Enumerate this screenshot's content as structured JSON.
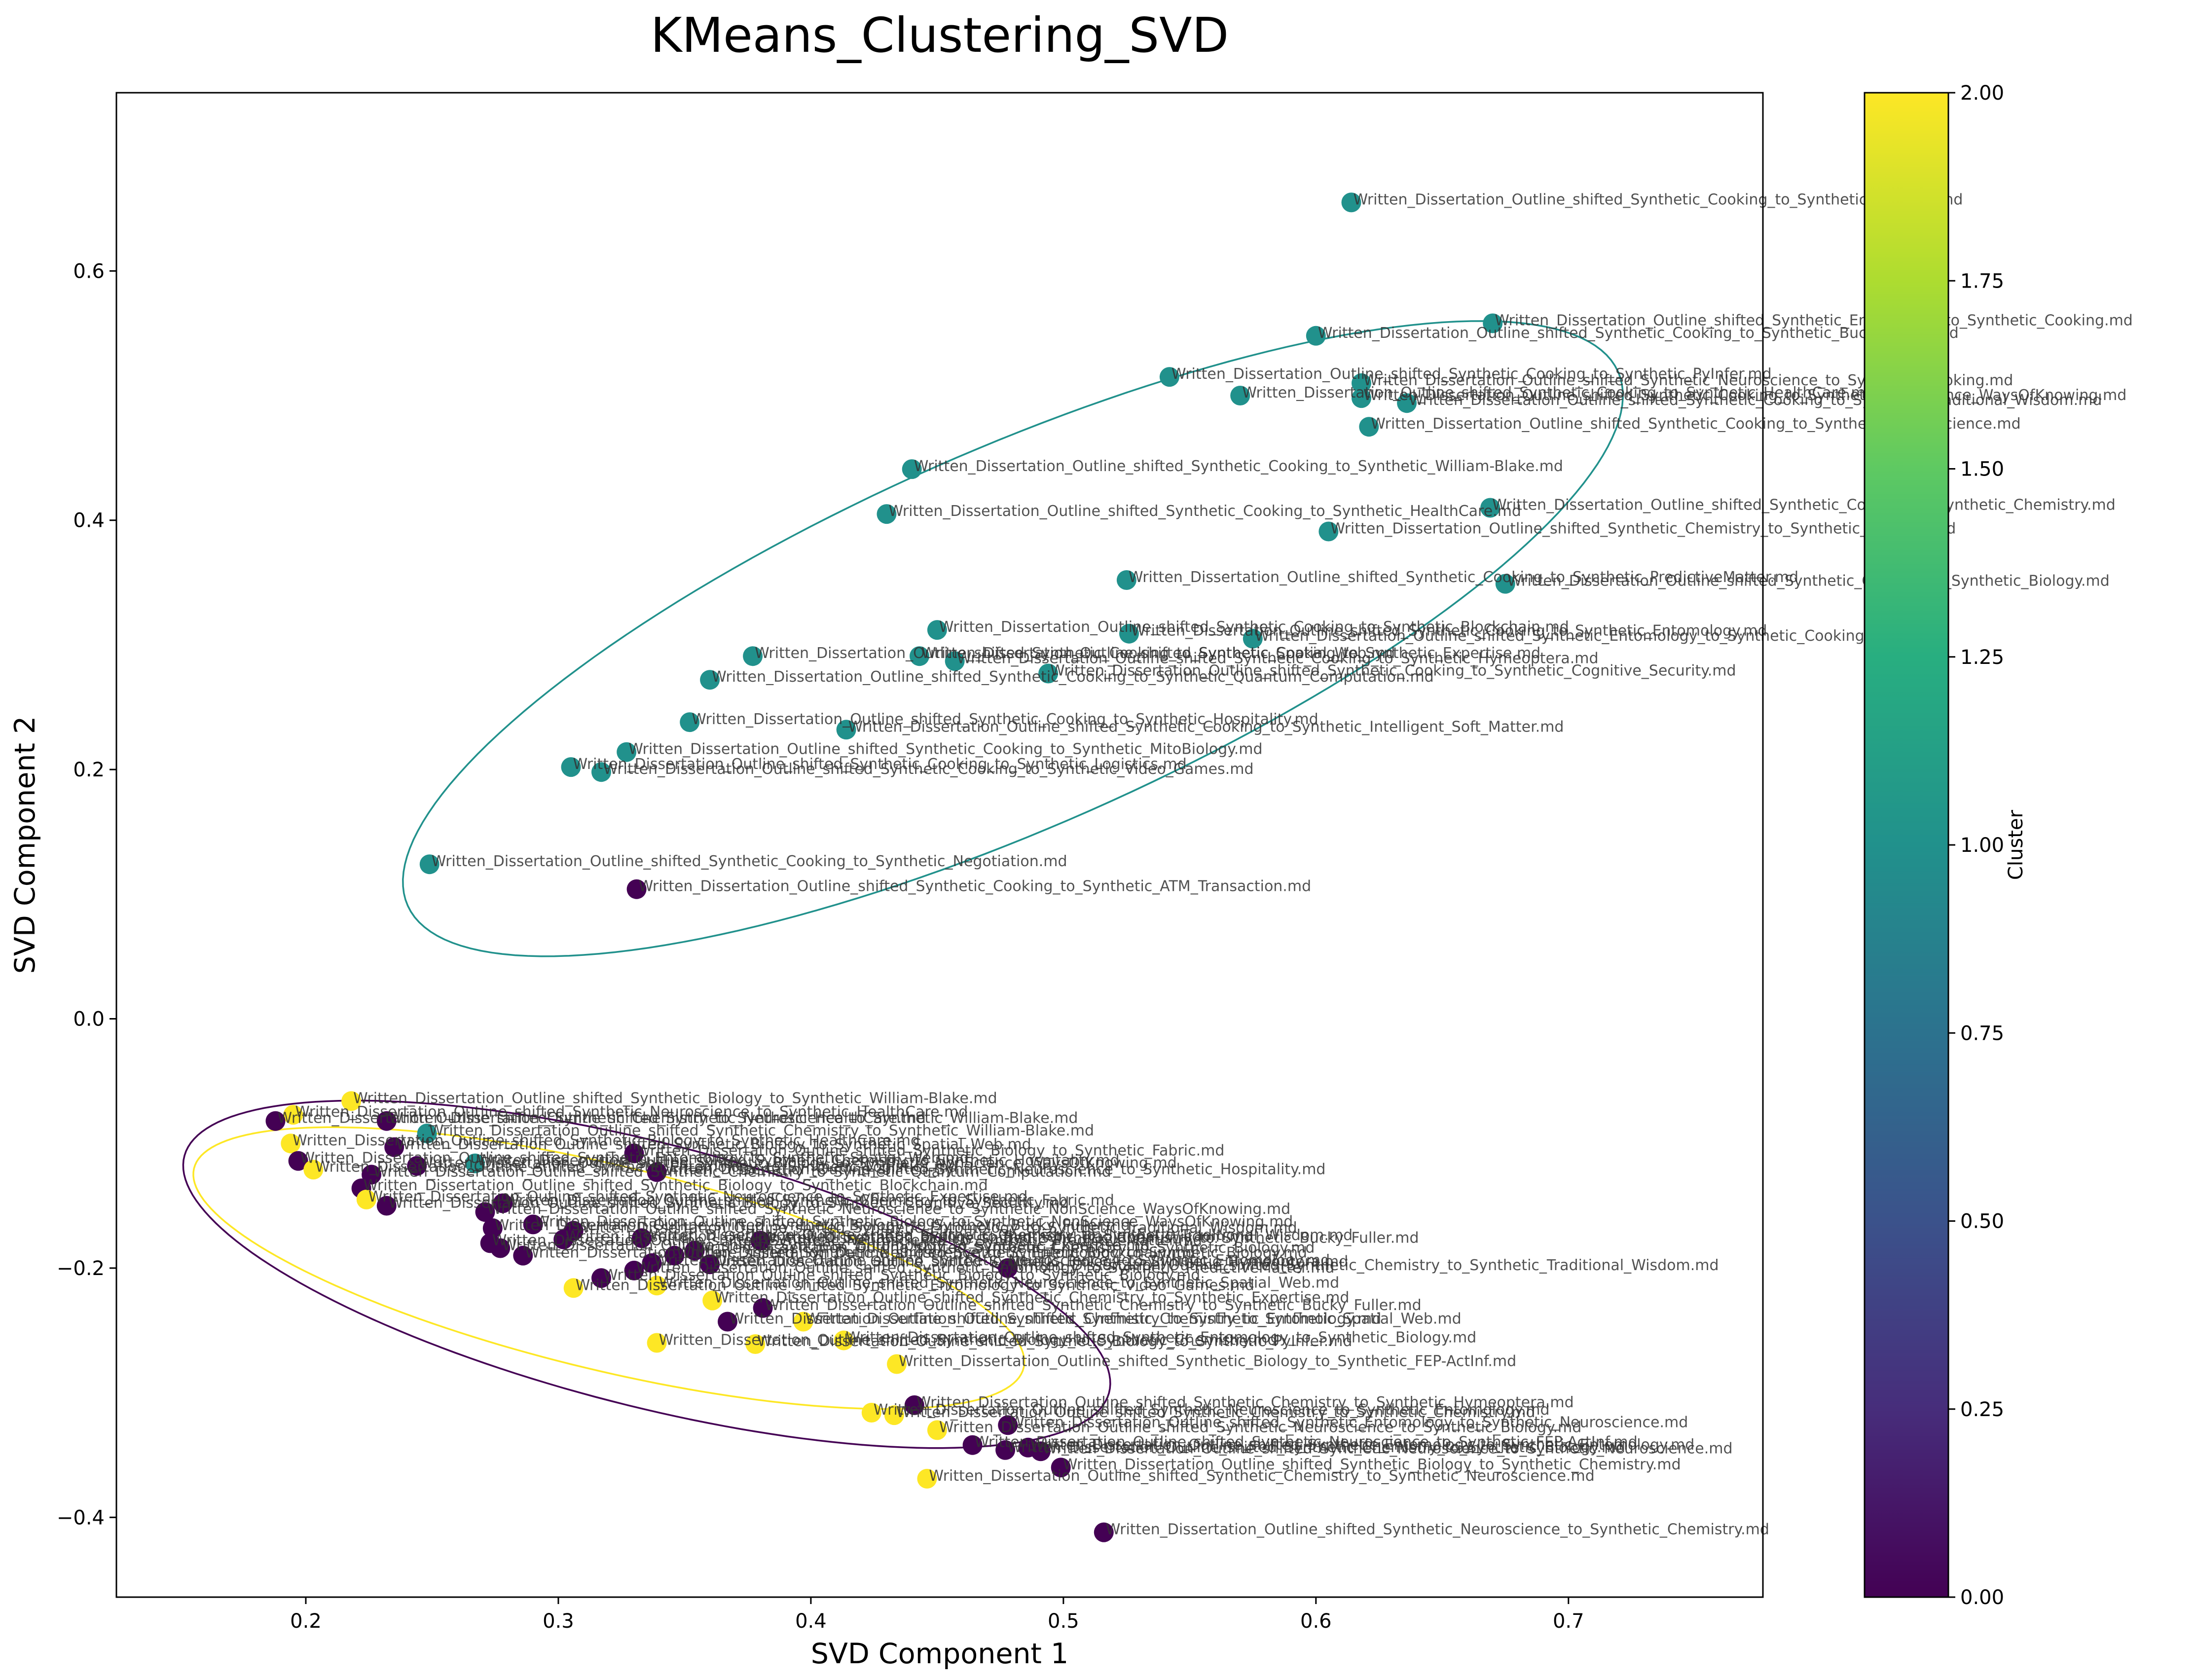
{
  "chart_data": {
    "type": "scatter",
    "title": "KMeans_Clustering_SVD",
    "xlabel": "SVD Component 1",
    "ylabel": "SVD Component 2",
    "xlim": [
      0.125,
      0.777
    ],
    "ylim": [
      -0.464,
      0.743
    ],
    "xticks": [
      0.2,
      0.3,
      0.4,
      0.5,
      0.6,
      0.7
    ],
    "xtick_labels": [
      "0.2",
      "0.3",
      "0.4",
      "0.5",
      "0.6",
      "0.7"
    ],
    "yticks": [
      -0.4,
      -0.2,
      0.0,
      0.2,
      0.4,
      0.6
    ],
    "ytick_labels": [
      "−0.4",
      "−0.2",
      "0.0",
      "0.2",
      "0.4",
      "0.6"
    ],
    "grid": false,
    "colorbar": {
      "label": "Cluster",
      "colormap": "viridis",
      "range": [
        0.0,
        2.0
      ],
      "ticks": [
        0.0,
        0.25,
        0.5,
        0.75,
        1.0,
        1.25,
        1.5,
        1.75,
        2.0
      ],
      "tick_labels": [
        "0.00",
        "0.25",
        "0.50",
        "0.75",
        "1.00",
        "1.25",
        "1.50",
        "1.75",
        "2.00"
      ]
    },
    "cluster_colors": [
      "#440154",
      "#21918c",
      "#fde725"
    ],
    "ellipses": [
      {
        "cluster": 0,
        "cx": 0.335,
        "cy": -0.205,
        "width": 0.42,
        "height": 0.19,
        "angle": -33
      },
      {
        "cluster": 1,
        "cx": 0.48,
        "cy": 0.305,
        "width": 0.66,
        "height": 0.24,
        "angle": 47
      },
      {
        "cluster": 2,
        "cx": 0.32,
        "cy": -0.2,
        "width": 0.37,
        "height": 0.15,
        "angle": -30
      }
    ],
    "points": [
      {
        "x": 0.614,
        "y": 0.655,
        "cluster": 1,
        "label": "Written_Dissertation_Outline_shifted_Synthetic_Cooking_to_Synthetic_Cooking.md"
      },
      {
        "x": 0.67,
        "y": 0.558,
        "cluster": 1,
        "label": "Written_Dissertation_Outline_shifted_Synthetic_Entomology_to_Synthetic_Cooking.md"
      },
      {
        "x": 0.6,
        "y": 0.548,
        "cluster": 1,
        "label": "Written_Dissertation_Outline_shifted_Synthetic_Cooking_to_Synthetic_Bucky_Fuller.md"
      },
      {
        "x": 0.542,
        "y": 0.515,
        "cluster": 1,
        "label": "Written_Dissertation_Outline_shifted_Synthetic_Cooking_to_Synthetic_PyInfer.md"
      },
      {
        "x": 0.57,
        "y": 0.5,
        "cluster": 1,
        "label": "Written_Dissertation_Outline_shifted_Synthetic_Cooking_to_Synthetic_HealthCare.md"
      },
      {
        "x": 0.618,
        "y": 0.51,
        "cluster": 1,
        "label": "Written_Dissertation_Outline_shifted_Synthetic_Neuroscience_to_Synthetic_Cooking.md"
      },
      {
        "x": 0.618,
        "y": 0.498,
        "cluster": 1,
        "label": "Written_Dissertation_Outline_shifted_Synthetic_Cooking_to_Synthetic_NonScience_WaysOfKnowing.md"
      },
      {
        "x": 0.636,
        "y": 0.494,
        "cluster": 1,
        "label": "Written_Dissertation_Outline_shifted_Synthetic_Cooking_to_Synthetic_Traditional_Wisdom.md"
      },
      {
        "x": 0.621,
        "y": 0.475,
        "cluster": 1,
        "label": "Written_Dissertation_Outline_shifted_Synthetic_Cooking_to_Synthetic_Neuroscience.md"
      },
      {
        "x": 0.44,
        "y": 0.441,
        "cluster": 1,
        "label": "Written_Dissertation_Outline_shifted_Synthetic_Cooking_to_Synthetic_William-Blake.md"
      },
      {
        "x": 0.43,
        "y": 0.405,
        "cluster": 1,
        "label": "Written_Dissertation_Outline_shifted_Synthetic_Cooking_to_Synthetic_HealthCare.md"
      },
      {
        "x": 0.669,
        "y": 0.41,
        "cluster": 1,
        "label": "Written_Dissertation_Outline_shifted_Synthetic_Cooking_to_Synthetic_Chemistry.md"
      },
      {
        "x": 0.605,
        "y": 0.391,
        "cluster": 1,
        "label": "Written_Dissertation_Outline_shifted_Synthetic_Chemistry_to_Synthetic_Cooking.md"
      },
      {
        "x": 0.525,
        "y": 0.352,
        "cluster": 1,
        "label": "Written_Dissertation_Outline_shifted_Synthetic_Cooking_to_Synthetic_PredictiveMatter.md"
      },
      {
        "x": 0.675,
        "y": 0.349,
        "cluster": 1,
        "label": "Written_Dissertation_Outline_shifted_Synthetic_Cooking_to_Synthetic_Biology.md"
      },
      {
        "x": 0.45,
        "y": 0.312,
        "cluster": 1,
        "label": "Written_Dissertation_Outline_shifted_Synthetic_Cooking_to_Synthetic_Blockchain.md"
      },
      {
        "x": 0.526,
        "y": 0.309,
        "cluster": 1,
        "label": "Written_Dissertation_Outline_shifted_Synthetic_Cooking_to_Synthetic_Entomology.md"
      },
      {
        "x": 0.575,
        "y": 0.305,
        "cluster": 1,
        "label": "Written_Dissertation_Outline_shifted_Synthetic_Entomology_to_Synthetic_Cooking.md"
      },
      {
        "x": 0.377,
        "y": 0.291,
        "cluster": 1,
        "label": "Written_Dissertation_Outline_shifted_Synthetic_Cooking_to_Synthetic_Spatial_Web.md"
      },
      {
        "x": 0.443,
        "y": 0.291,
        "cluster": 1,
        "label": "Written_Dissertation_Outline_shifted_Synthetic_Cooking_to_Synthetic_Expertise.md"
      },
      {
        "x": 0.457,
        "y": 0.287,
        "cluster": 1,
        "label": "Written_Dissertation_Outline_shifted_Synthetic_Cooking_to_Synthetic_Hymeoptera.md"
      },
      {
        "x": 0.494,
        "y": 0.277,
        "cluster": 1,
        "label": "Written_Dissertation_Outline_shifted_Synthetic_Cooking_to_Synthetic_Cognitive_Security.md"
      },
      {
        "x": 0.36,
        "y": 0.272,
        "cluster": 1,
        "label": "Written_Dissertation_Outline_shifted_Synthetic_Cooking_to_Synthetic_Quantum_Computation.md"
      },
      {
        "x": 0.352,
        "y": 0.238,
        "cluster": 1,
        "label": "Written_Dissertation_Outline_shifted_Synthetic_Cooking_to_Synthetic_Hospitality.md"
      },
      {
        "x": 0.414,
        "y": 0.232,
        "cluster": 1,
        "label": "Written_Dissertation_Outline_shifted_Synthetic_Cooking_to_Synthetic_Intelligent_Soft_Matter.md"
      },
      {
        "x": 0.327,
        "y": 0.214,
        "cluster": 1,
        "label": "Written_Dissertation_Outline_shifted_Synthetic_Cooking_to_Synthetic_MitoBiology.md"
      },
      {
        "x": 0.305,
        "y": 0.202,
        "cluster": 1,
        "label": "Written_Dissertation_Outline_shifted_Synthetic_Cooking_to_Synthetic_Logistics.md"
      },
      {
        "x": 0.317,
        "y": 0.198,
        "cluster": 1,
        "label": "Written_Dissertation_Outline_shifted_Synthetic_Cooking_to_Synthetic_Video_Games.md"
      },
      {
        "x": 0.249,
        "y": 0.124,
        "cluster": 1,
        "label": "Written_Dissertation_Outline_shifted_Synthetic_Cooking_to_Synthetic_Negotiation.md"
      },
      {
        "x": 0.331,
        "y": 0.104,
        "cluster": 0,
        "label": "Written_Dissertation_Outline_shifted_Synthetic_Cooking_to_Synthetic_ATM_Transaction.md"
      },
      {
        "x": 0.218,
        "y": -0.066,
        "cluster": 2,
        "label": "Written_Dissertation_Outline_shifted_Synthetic_Biology_to_Synthetic_William-Blake.md"
      },
      {
        "x": 0.195,
        "y": -0.077,
        "cluster": 2,
        "label": "Written_Dissertation_Outline_shifted_Synthetic_Neuroscience_to_Synthetic_HealthCare.md"
      },
      {
        "x": 0.188,
        "y": -0.082,
        "cluster": 0,
        "label": "Written_Dissertation_Outline_shifted_Synthetic_Chemistry_to_Synthetic_HealthCare.md"
      },
      {
        "x": 0.232,
        "y": -0.082,
        "cluster": 0,
        "label": "Written_Dissertation_Outline_shifted_Synthetic_Neuroscience_to_Synthetic_William-Blake.md"
      },
      {
        "x": 0.248,
        "y": -0.092,
        "cluster": 1,
        "label": "Written_Dissertation_Outline_shifted_Synthetic_Chemistry_to_Synthetic_William-Blake.md"
      },
      {
        "x": 0.194,
        "y": -0.1,
        "cluster": 2,
        "label": "Written_Dissertation_Outline_shifted_Synthetic_Biology_to_Synthetic_HealthCare.md"
      },
      {
        "x": 0.235,
        "y": -0.103,
        "cluster": 0,
        "label": "Written_Dissertation_Outline_shifted_Synthetic_Biology_to_Synthetic_Spatial_Web.md"
      },
      {
        "x": 0.33,
        "y": -0.108,
        "cluster": 0,
        "label": "Written_Dissertation_Outline_shifted_Synthetic_Biology_to_Synthetic_Fabric.md"
      },
      {
        "x": 0.197,
        "y": -0.114,
        "cluster": 0,
        "label": "Written_Dissertation_Outline_shifted_Synthetic_Entomology_to_Synthetic_Spatial_Web.md"
      },
      {
        "x": 0.267,
        "y": -0.116,
        "cluster": 1,
        "label": "Written_Dissertation_Outline_shifted_Synthetic_Chemistry_to_Synthetic_Hospitality.md"
      },
      {
        "x": 0.244,
        "y": -0.118,
        "cluster": 0,
        "label": "Written_Dissertation_Outline_shifted_Synthetic_Biology_to_Synthetic_NonScience_WaysOfKnowing.md"
      },
      {
        "x": 0.203,
        "y": -0.121,
        "cluster": 2,
        "label": "Written_Dissertation_Outline_shifted_Synthetic_Entomology_to_Synthetic_Logistics.md"
      },
      {
        "x": 0.339,
        "y": -0.123,
        "cluster": 0,
        "label": "Written_Dissertation_Outline_shifted_Synthetic_Neuroscience_to_Synthetic_Hospitality.md"
      },
      {
        "x": 0.226,
        "y": -0.125,
        "cluster": 0,
        "label": "Written_Dissertation_Outline_shifted_Synthetic_Chemistry_to_Synthetic_Quantum_Computation.md"
      },
      {
        "x": 0.222,
        "y": -0.136,
        "cluster": 0,
        "label": "Written_Dissertation_Outline_shifted_Synthetic_Biology_to_Synthetic_Blockchain.md"
      },
      {
        "x": 0.224,
        "y": -0.145,
        "cluster": 2,
        "label": "Written_Dissertation_Outline_shifted_Synthetic_Neuroscience_to_Synthetic_Expertise.md"
      },
      {
        "x": 0.232,
        "y": -0.15,
        "cluster": 0,
        "label": "Written_Dissertation_Outline_shifted_Synthetic_Biology_to_Synthetic_Cognitive_Security.md"
      },
      {
        "x": 0.278,
        "y": -0.148,
        "cluster": 0,
        "label": "Written_Dissertation_Outline_shifted_Synthetic_Chemistry_to_Synthetic_Fabric.md"
      },
      {
        "x": 0.271,
        "y": -0.155,
        "cluster": 0,
        "label": "Written_Dissertation_Outline_shifted_Synthetic_Neuroscience_to_Synthetic_NonScience_WaysOfKnowing.md"
      },
      {
        "x": 0.29,
        "y": -0.165,
        "cluster": 0,
        "label": "Written_Dissertation_Outline_shifted_Synthetic_Biology_to_Synthetic_NonScience_WaysOfKnowing.md"
      },
      {
        "x": 0.274,
        "y": -0.168,
        "cluster": 0,
        "label": "Written_Dissertation_Outline_shifted_Synthetic_Biology_to_Synthetic_Bucky_Fuller.md"
      },
      {
        "x": 0.306,
        "y": -0.17,
        "cluster": 0,
        "label": "Written_Dissertation_Outline_shifted_Synthetic_Entomology_to_Synthetic_Traditional_Wisdom.md"
      },
      {
        "x": 0.333,
        "y": -0.176,
        "cluster": 0,
        "label": "Written_Dissertation_Outline_shifted_Synthetic_Chemistry_to_Synthetic_Traditional_Wisdom.md"
      },
      {
        "x": 0.302,
        "y": -0.177,
        "cluster": 0,
        "label": "Written_Dissertation_Outline_shifted_Synthetic_Biology_to_Synthetic_Traditional_Wisdom.md"
      },
      {
        "x": 0.38,
        "y": -0.178,
        "cluster": 0,
        "label": "Written_Dissertation_Outline_shifted_Synthetic_Chemistry_to_Synthetic_Bucky_Fuller.md"
      },
      {
        "x": 0.273,
        "y": -0.18,
        "cluster": 0,
        "label": "Written_Dissertation_Outline_shifted_Synthetic_Neuroscience_to_Synthetic_PredictiveMatter.md"
      },
      {
        "x": 0.277,
        "y": -0.184,
        "cluster": 0,
        "label": "Written_Dissertation_Outline_shifted_Synthetic_Entomology_to_Synthetic_Expertise.md"
      },
      {
        "x": 0.354,
        "y": -0.186,
        "cluster": 0,
        "label": "Written_Dissertation_Outline_shifted_Synthetic_Chemistry_to_Synthetic_Biology.md"
      },
      {
        "x": 0.286,
        "y": -0.19,
        "cluster": 0,
        "label": "Written_Dissertation_Outline_shifted_Synthetic_Neuroscience_to_Synthetic_Blockchain.md"
      },
      {
        "x": 0.346,
        "y": -0.19,
        "cluster": 0,
        "label": "Written_Dissertation_Outline_shifted_Synthetic_Entomology_to_Synthetic_Biology.md"
      },
      {
        "x": 0.337,
        "y": -0.196,
        "cluster": 0,
        "label": "Written_Dissertation_Outline_shifted_Synthetic_Neuroscience_to_Synthetic_Entomology.md"
      },
      {
        "x": 0.36,
        "y": -0.197,
        "cluster": 0,
        "label": "Written_Dissertation_Outline_shifted_Synthetic_Biology_to_Synthetic_Hymeoptera.md"
      },
      {
        "x": 0.478,
        "y": -0.2,
        "cluster": 0,
        "label": "Written_Dissertation_Outline_shifted_Synthetic_Chemistry_to_Synthetic_Traditional_Wisdom.md"
      },
      {
        "x": 0.33,
        "y": -0.202,
        "cluster": 0,
        "label": "Written_Dissertation_Outline_shifted_Synthetic_Entomology_to_Synthetic_PredictiveMatter.md"
      },
      {
        "x": 0.317,
        "y": -0.208,
        "cluster": 0,
        "label": "Written_Dissertation_Outline_shifted_Synthetic_Biology_to_Synthetic_Biology.md"
      },
      {
        "x": 0.306,
        "y": -0.216,
        "cluster": 2,
        "label": "Written_Dissertation_Outline_shifted_Synthetic_Entomology_to_Synthetic_Video_Games.md"
      },
      {
        "x": 0.339,
        "y": -0.214,
        "cluster": 2,
        "label": "Written_Dissertation_Outline_shifted_Synthetic_Neuroscience_to_Synthetic_Spatial_Web.md"
      },
      {
        "x": 0.361,
        "y": -0.226,
        "cluster": 2,
        "label": "Written_Dissertation_Outline_shifted_Synthetic_Chemistry_to_Synthetic_Expertise.md"
      },
      {
        "x": 0.381,
        "y": -0.232,
        "cluster": 0,
        "label": "Written_Dissertation_Outline_shifted_Synthetic_Chemistry_to_Synthetic_Bucky_Fuller.md"
      },
      {
        "x": 0.367,
        "y": -0.243,
        "cluster": 0,
        "label": "Written_Dissertation_Outline_shifted_Synthetic_Chemistry_to_Synthetic_Entomology.md"
      },
      {
        "x": 0.397,
        "y": -0.243,
        "cluster": 2,
        "label": "Written_Dissertation_Outline_shifted_Synthetic_Chemistry_to_Synthetic_Spatial_Web.md"
      },
      {
        "x": 0.339,
        "y": -0.26,
        "cluster": 2,
        "label": "Written_Dissertation_Outline_shifted_Synthetic_Biology_to_Synthetic_Chemistry.md"
      },
      {
        "x": 0.378,
        "y": -0.261,
        "cluster": 2,
        "label": "Written_Dissertation_Outline_shifted_Synthetic_Biology_to_Synthetic_PyInfer.md"
      },
      {
        "x": 0.413,
        "y": -0.258,
        "cluster": 2,
        "label": "Written_Dissertation_Outline_shifted_Synthetic_Entomology_to_Synthetic_Biology.md"
      },
      {
        "x": 0.434,
        "y": -0.277,
        "cluster": 2,
        "label": "Written_Dissertation_Outline_shifted_Synthetic_Biology_to_Synthetic_FEP-ActInf.md"
      },
      {
        "x": 0.441,
        "y": -0.31,
        "cluster": 0,
        "label": "Written_Dissertation_Outline_shifted_Synthetic_Chemistry_to_Synthetic_Hymeoptera.md"
      },
      {
        "x": 0.424,
        "y": -0.316,
        "cluster": 2,
        "label": "Written_Dissertation_Outline_shifted_Synthetic_Neuroscience_to_Synthetic_Entomology.md"
      },
      {
        "x": 0.433,
        "y": -0.318,
        "cluster": 2,
        "label": "Written_Dissertation_Outline_shifted_Synthetic_Chemistry_to_Synthetic_Chemistry.md"
      },
      {
        "x": 0.478,
        "y": -0.326,
        "cluster": 0,
        "label": "Written_Dissertation_Outline_shifted_Synthetic_Entomology_to_Synthetic_Neuroscience.md"
      },
      {
        "x": 0.45,
        "y": -0.33,
        "cluster": 2,
        "label": "Written_Dissertation_Outline_shifted_Synthetic_Neuroscience_to_Synthetic_Biology.md"
      },
      {
        "x": 0.464,
        "y": -0.342,
        "cluster": 0,
        "label": "Written_Dissertation_Outline_shifted_Synthetic_Neuroscience_to_Synthetic_FEP-ActInf.md"
      },
      {
        "x": 0.486,
        "y": -0.344,
        "cluster": 0,
        "label": "Written_Dissertation_Outline_shifted_Synthetic_Entomology_to_Synthetic_Entomology.md"
      },
      {
        "x": 0.477,
        "y": -0.346,
        "cluster": 0,
        "label": "Written_Dissertation_Outline_shifted_Synthetic_Chemistry_to_Synthetic_Biology.md"
      },
      {
        "x": 0.491,
        "y": -0.347,
        "cluster": 0,
        "label": "Written_Dissertation_Outline_shifted_Synthetic_Neuroscience_to_Synthetic_Neuroscience.md"
      },
      {
        "x": 0.499,
        "y": -0.36,
        "cluster": 0,
        "label": "Written_Dissertation_Outline_shifted_Synthetic_Biology_to_Synthetic_Chemistry.md"
      },
      {
        "x": 0.446,
        "y": -0.369,
        "cluster": 2,
        "label": "Written_Dissertation_Outline_shifted_Synthetic_Chemistry_to_Synthetic_Neuroscience.md"
      },
      {
        "x": 0.516,
        "y": -0.412,
        "cluster": 0,
        "label": "Written_Dissertation_Outline_shifted_Synthetic_Neuroscience_to_Synthetic_Chemistry.md"
      }
    ]
  }
}
